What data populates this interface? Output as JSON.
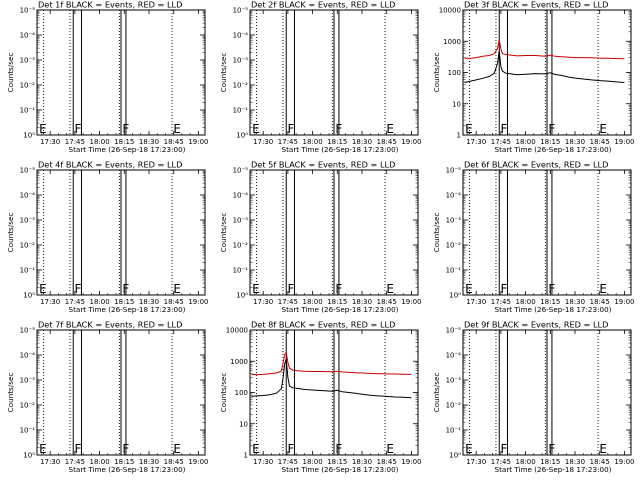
{
  "chart_data": {
    "type": "line",
    "layout": "3x3 grid of detector panels",
    "x_axis": {
      "label": "Start Time (26-Sep-18 17:23:00)",
      "ticks": [
        "17:30",
        "17:45",
        "18:00",
        "18:15",
        "18:30",
        "18:45",
        "19:00"
      ],
      "tick_minutes": [
        30,
        45,
        60,
        75,
        90,
        105,
        120
      ],
      "range_minutes": [
        22,
        124
      ],
      "note": "minutes after 17:00"
    },
    "y_axis": {
      "label": "Counts/sec",
      "scale": "log"
    },
    "colors": {
      "events": "#000000",
      "lld": "#cc0000"
    },
    "markers": {
      "dotted_lines_minutes": [
        26,
        42,
        72,
        104
      ],
      "solid_intervals_minutes": [
        [
          44,
          49
        ],
        [
          73,
          76
        ]
      ],
      "letters": [
        {
          "text": "E",
          "minute": 23
        },
        {
          "text": "F",
          "minute": 44.5
        },
        {
          "text": "F",
          "minute": 73.5
        },
        {
          "text": "E",
          "minute": 104.5
        }
      ]
    },
    "panels": [
      {
        "title": "Det 1f BLACK = Events, RED = LLD",
        "has_data": false,
        "ylim": [
          1,
          10000
        ],
        "tick_labels": [
          "10⁰",
          "10⁻¹",
          "10⁻²",
          "10⁻³",
          "10⁻⁴",
          "10⁻⁵"
        ]
      },
      {
        "title": "Det 2f BLACK = Events, RED = LLD",
        "has_data": false,
        "ylim": [
          1,
          10000
        ],
        "tick_labels": [
          "10⁰",
          "10⁻¹",
          "10⁻²",
          "10⁻³",
          "10⁻⁴",
          "10⁻⁵"
        ]
      },
      {
        "title": "Det 3f BLACK = Events, RED = LLD",
        "has_data": true,
        "ylim": [
          1,
          10000
        ],
        "tick_labels": [
          "1",
          "10",
          "100",
          "1000",
          "10000"
        ],
        "series": [
          {
            "name": "LLD",
            "color": "#cc0000",
            "x": [
              23,
              26,
              30,
              34,
              38,
              41,
              43,
              44,
              45,
              46,
              48,
              51,
              55,
              60,
              66,
              72,
              75,
              78,
              82,
              86,
              90,
              95,
              100,
              105,
              110,
              115,
              120
            ],
            "y": [
              290,
              280,
              300,
              330,
              350,
              400,
              600,
              1100,
              560,
              400,
              380,
              360,
              340,
              350,
              350,
              330,
              360,
              330,
              320,
              310,
              300,
              300,
              295,
              290,
              285,
              280,
              275
            ]
          },
          {
            "name": "Events",
            "color": "#000000",
            "x": [
              23,
              26,
              30,
              34,
              38,
              41,
              43,
              44,
              45,
              46,
              48,
              51,
              55,
              60,
              66,
              72,
              75,
              78,
              82,
              86,
              90,
              95,
              100,
              105,
              110,
              115,
              120
            ],
            "y": [
              48,
              52,
              58,
              65,
              75,
              95,
              200,
              500,
              150,
              110,
              95,
              90,
              85,
              88,
              92,
              90,
              98,
              86,
              80,
              72,
              66,
              62,
              58,
              55,
              53,
              50,
              48
            ]
          }
        ]
      },
      {
        "title": "Det 4f BLACK = Events, RED = LLD",
        "has_data": false,
        "ylim": [
          1,
          10000
        ],
        "tick_labels": [
          "10⁰",
          "10⁻¹",
          "10⁻²",
          "10⁻³",
          "10⁻⁴",
          "10⁻⁵"
        ]
      },
      {
        "title": "Det 5f BLACK = Events, RED = LLD",
        "has_data": false,
        "ylim": [
          1,
          10000
        ],
        "tick_labels": [
          "10⁰",
          "10⁻¹",
          "10⁻²",
          "10⁻³",
          "10⁻⁴",
          "10⁻⁵"
        ]
      },
      {
        "title": "Det 6f BLACK = Events, RED = LLD",
        "has_data": false,
        "ylim": [
          1,
          10000
        ],
        "tick_labels": [
          "10⁰",
          "10⁻¹",
          "10⁻²",
          "10⁻³",
          "10⁻⁴",
          "10⁻⁵"
        ]
      },
      {
        "title": "Det 7f BLACK = Events, RED = LLD",
        "has_data": false,
        "ylim": [
          1,
          10000
        ],
        "tick_labels": [
          "10⁰",
          "10⁻¹",
          "10⁻²",
          "10⁻³",
          "10⁻⁴",
          "10⁻⁵"
        ]
      },
      {
        "title": "Det 8f BLACK = Events, RED = LLD",
        "has_data": true,
        "ylim": [
          1,
          10000
        ],
        "tick_labels": [
          "1",
          "10",
          "100",
          "1000",
          "10000"
        ],
        "series": [
          {
            "name": "LLD",
            "color": "#cc0000",
            "x": [
              23,
              26,
              30,
              34,
              38,
              41,
              42,
              43,
              44,
              45,
              46,
              48,
              51,
              55,
              60,
              66,
              72,
              75,
              78,
              82,
              86,
              90,
              95,
              100,
              105,
              110,
              115,
              120
            ],
            "y": [
              380,
              370,
              380,
              400,
              420,
              480,
              800,
              1600,
              1900,
              900,
              600,
              520,
              500,
              480,
              470,
              470,
              460,
              480,
              455,
              440,
              430,
              420,
              410,
              400,
              395,
              390,
              385,
              380
            ]
          },
          {
            "name": "Events",
            "color": "#000000",
            "x": [
              23,
              26,
              30,
              34,
              38,
              41,
              42,
              43,
              44,
              45,
              46,
              48,
              51,
              55,
              60,
              66,
              72,
              75,
              78,
              82,
              86,
              90,
              95,
              100,
              105,
              110,
              115,
              120
            ],
            "y": [
              75,
              78,
              80,
              85,
              95,
              130,
              260,
              800,
              1200,
              300,
              160,
              140,
              135,
              125,
              120,
              115,
              110,
              118,
              105,
              100,
              95,
              88,
              82,
              78,
              75,
              72,
              70,
              68
            ]
          }
        ]
      },
      {
        "title": "Det 9f BLACK = Events, RED = LLD",
        "has_data": false,
        "ylim": [
          1,
          10000
        ],
        "tick_labels": [
          "10⁰",
          "10⁻¹",
          "10⁻²",
          "10⁻³",
          "10⁻⁴",
          "10⁻⁵"
        ]
      }
    ]
  }
}
